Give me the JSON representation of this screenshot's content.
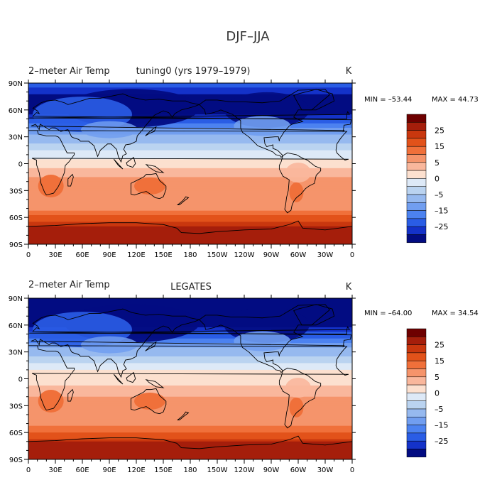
{
  "figure_title": "DJF–JJA",
  "colors": {
    "palette": [
      "#6e0000",
      "#a51e0b",
      "#c9370e",
      "#e2521a",
      "#f0703a",
      "#f5946b",
      "#f9b79c",
      "#fce0cf",
      "#dde9f7",
      "#bad3f0",
      "#96b9ef",
      "#719ef0",
      "#4c82f0",
      "#2a5de5",
      "#1432c9",
      "#020c82"
    ],
    "coast": "#000000",
    "frame": "#000000"
  },
  "chart_data": [
    {
      "type": "heatmap",
      "panel": "top",
      "left_title": "2–meter Air Temp",
      "center_title": "tuning0 (yrs 1979–1979)",
      "units": "K",
      "min_label": "MIN = –53.44",
      "max_label": "MAX =  44.73",
      "min": -53.44,
      "max": 44.73,
      "x_ticks": [
        "0",
        "30E",
        "60E",
        "90E",
        "120E",
        "150E",
        "180",
        "150W",
        "120W",
        "90W",
        "60W",
        "30W",
        "0"
      ],
      "y_ticks": [
        "90N",
        "60N",
        "30N",
        "0",
        "30S",
        "60S",
        "90S"
      ],
      "colorbar_labels": [
        "25",
        "15",
        "5",
        "0",
        "–5",
        "–15",
        "–25"
      ],
      "zonal_mean": [
        {
          "lat": 90,
          "v": -22
        },
        {
          "lat": 80,
          "v": -28
        },
        {
          "lat": 70,
          "v": -38
        },
        {
          "lat": 60,
          "v": -34
        },
        {
          "lat": 50,
          "v": -26
        },
        {
          "lat": 40,
          "v": -16
        },
        {
          "lat": 30,
          "v": -8
        },
        {
          "lat": 20,
          "v": -4
        },
        {
          "lat": 10,
          "v": -1
        },
        {
          "lat": 0,
          "v": 1
        },
        {
          "lat": -10,
          "v": 4
        },
        {
          "lat": -20,
          "v": 6
        },
        {
          "lat": -30,
          "v": 9
        },
        {
          "lat": -40,
          "v": 7
        },
        {
          "lat": -50,
          "v": 9
        },
        {
          "lat": -60,
          "v": 16
        },
        {
          "lat": -70,
          "v": 24
        },
        {
          "lat": -80,
          "v": 30
        },
        {
          "lat": -90,
          "v": 26
        }
      ]
    },
    {
      "type": "heatmap",
      "panel": "bottom",
      "left_title": "2–meter Air Temp",
      "center_title": "LEGATES",
      "units": "K",
      "min_label": "MIN = –64.00",
      "max_label": "MAX =  34.54",
      "min": -64.0,
      "max": 34.54,
      "x_ticks": [
        "0",
        "30E",
        "60E",
        "90E",
        "120E",
        "150E",
        "180",
        "150W",
        "120W",
        "90W",
        "60W",
        "30W",
        "0"
      ],
      "y_ticks": [
        "90N",
        "60N",
        "30N",
        "0",
        "30S",
        "60S",
        "90S"
      ],
      "colorbar_labels": [
        "25",
        "15",
        "5",
        "0",
        "–5",
        "–15",
        "–25"
      ],
      "zonal_mean": [
        {
          "lat": 90,
          "v": -30
        },
        {
          "lat": 80,
          "v": -34
        },
        {
          "lat": 70,
          "v": -36
        },
        {
          "lat": 60,
          "v": -32
        },
        {
          "lat": 50,
          "v": -24
        },
        {
          "lat": 40,
          "v": -14
        },
        {
          "lat": 30,
          "v": -7
        },
        {
          "lat": 20,
          "v": -3
        },
        {
          "lat": 10,
          "v": 0
        },
        {
          "lat": 0,
          "v": 1
        },
        {
          "lat": -10,
          "v": 3
        },
        {
          "lat": -20,
          "v": 5
        },
        {
          "lat": -30,
          "v": 7
        },
        {
          "lat": -40,
          "v": 6
        },
        {
          "lat": -50,
          "v": 8
        },
        {
          "lat": -60,
          "v": 14
        },
        {
          "lat": -70,
          "v": 22
        },
        {
          "lat": -80,
          "v": 24
        },
        {
          "lat": -90,
          "v": 24
        }
      ]
    }
  ]
}
